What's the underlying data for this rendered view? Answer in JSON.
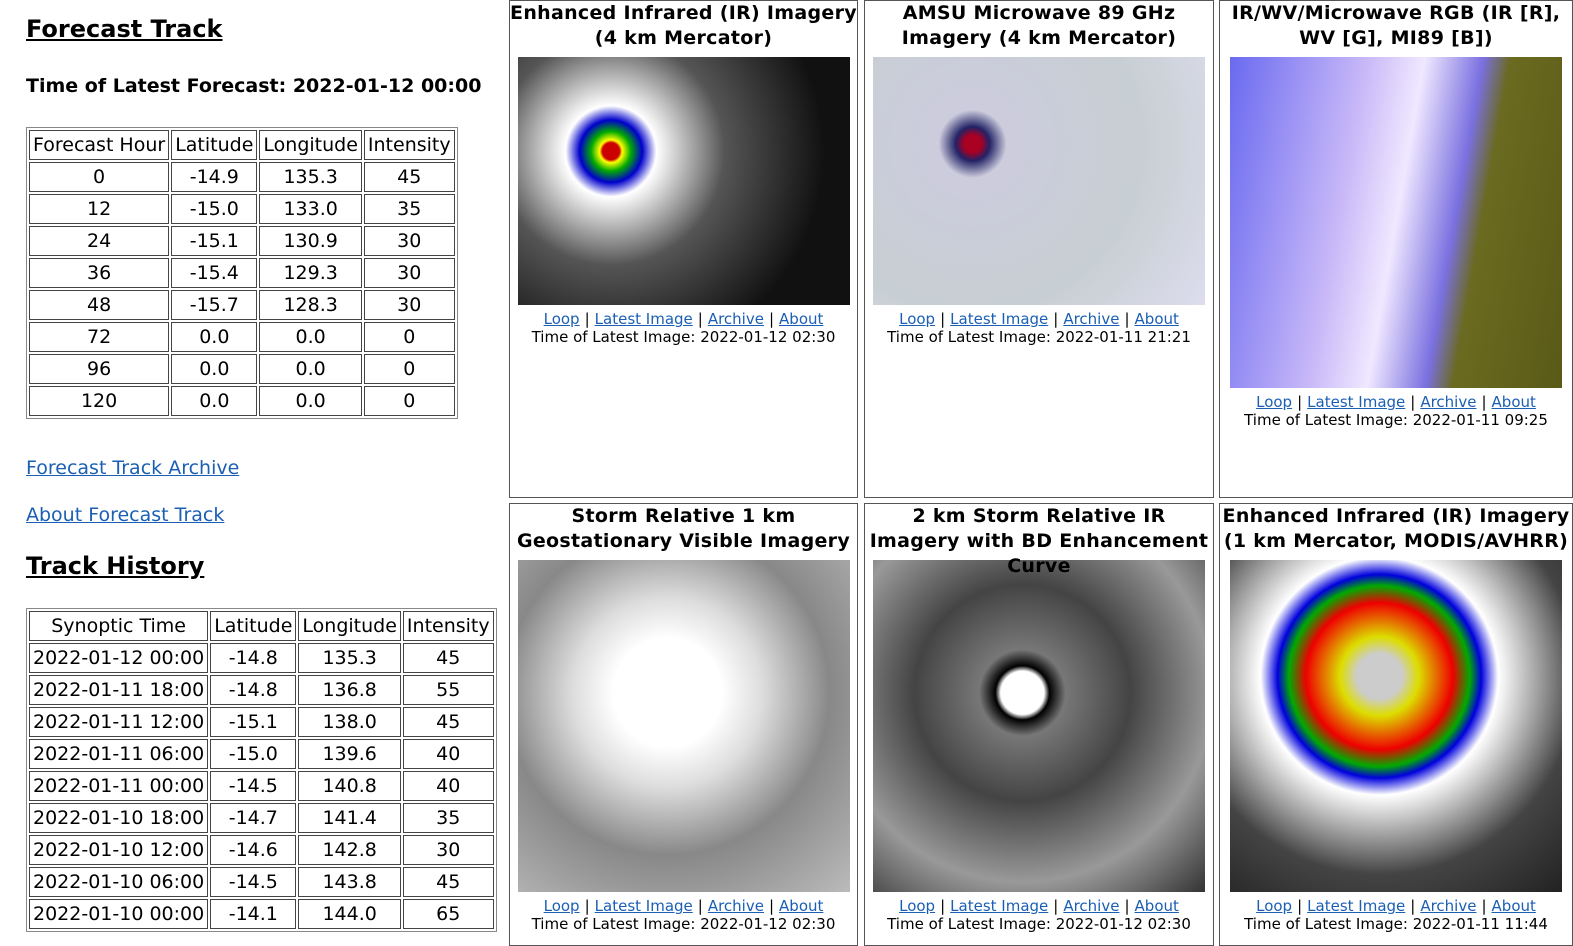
{
  "forecast_track": {
    "heading": "Forecast Track",
    "latest_forecast": "Time of Latest Forecast: 2022-01-12 00:00",
    "table": {
      "header": [
        "Forecast Hour",
        "Latitude",
        "Longitude",
        "Intensity"
      ],
      "rows": [
        [
          "0",
          "-14.9",
          "135.3",
          "45"
        ],
        [
          "12",
          "-15.0",
          "133.0",
          "35"
        ],
        [
          "24",
          "-15.1",
          "130.9",
          "30"
        ],
        [
          "36",
          "-15.4",
          "129.3",
          "30"
        ],
        [
          "48",
          "-15.7",
          "128.3",
          "30"
        ],
        [
          "72",
          "0.0",
          "0.0",
          "0"
        ],
        [
          "96",
          "0.0",
          "0.0",
          "0"
        ],
        [
          "120",
          "0.0",
          "0.0",
          "0"
        ]
      ]
    }
  },
  "links": [
    "Forecast Track Archive",
    "About Forecast Track"
  ],
  "track_history": {
    "heading": "Track History",
    "table": {
      "header": [
        "Synoptic Time",
        "Latitude",
        "Longitude",
        "Intensity"
      ],
      "rows": [
        [
          "2022-01-12 00:00",
          "-14.8",
          "135.3",
          "45"
        ],
        [
          "2022-01-11 18:00",
          "-14.8",
          "136.8",
          "55"
        ],
        [
          "2022-01-11 12:00",
          "-15.1",
          "138.0",
          "45"
        ],
        [
          "2022-01-11 06:00",
          "-15.0",
          "139.6",
          "40"
        ],
        [
          "2022-01-11 00:00",
          "-14.5",
          "140.8",
          "40"
        ],
        [
          "2022-01-10 18:00",
          "-14.7",
          "141.4",
          "35"
        ],
        [
          "2022-01-10 12:00",
          "-14.6",
          "142.8",
          "30"
        ],
        [
          "2022-01-10 06:00",
          "-14.5",
          "143.8",
          "45"
        ],
        [
          "2022-01-10 00:00",
          "-14.1",
          "144.0",
          "65"
        ]
      ]
    }
  },
  "link_separator": "|",
  "panels": [
    {
      "title": "Enhanced Infrared (IR) Imagery (4 km Mercator)",
      "links": [
        "Loop",
        "Latest Image",
        "Archive",
        "About"
      ],
      "latest_image": "Time of Latest Image: 2022-01-12 02:30"
    },
    {
      "title": "AMSU Microwave 89 GHz Imagery (4 km Mercator)",
      "links": [
        "Loop",
        "Latest Image",
        "Archive",
        "About"
      ],
      "latest_image": "Time of Latest Image: 2022-01-11 21:21"
    },
    {
      "title": "IR/WV/Microwave RGB (IR [R], WV [G], MI89 [B])",
      "links": [
        "Loop",
        "Latest Image",
        "Archive",
        "About"
      ],
      "latest_image": "Time of Latest Image: 2022-01-11 09:25"
    },
    {
      "title": "Storm Relative 1 km Geostationary Visible Imagery",
      "links": [
        "Loop",
        "Latest Image",
        "Archive",
        "About"
      ],
      "latest_image": "Time of Latest Image: 2022-01-12 02:30"
    },
    {
      "title": "2 km Storm Relative IR Imagery with BD Enhancement Curve",
      "links": [
        "Loop",
        "Latest Image",
        "Archive",
        "About"
      ],
      "latest_image": "Time of Latest Image: 2022-01-12 02:30"
    },
    {
      "title": "Enhanced Infrared (IR) Imagery (1 km Mercator, MODIS/AVHRR)",
      "links": [
        "Loop",
        "Latest Image",
        "Archive",
        "About"
      ],
      "latest_image": "Time of Latest Image: 2022-01-11 11:44"
    }
  ]
}
